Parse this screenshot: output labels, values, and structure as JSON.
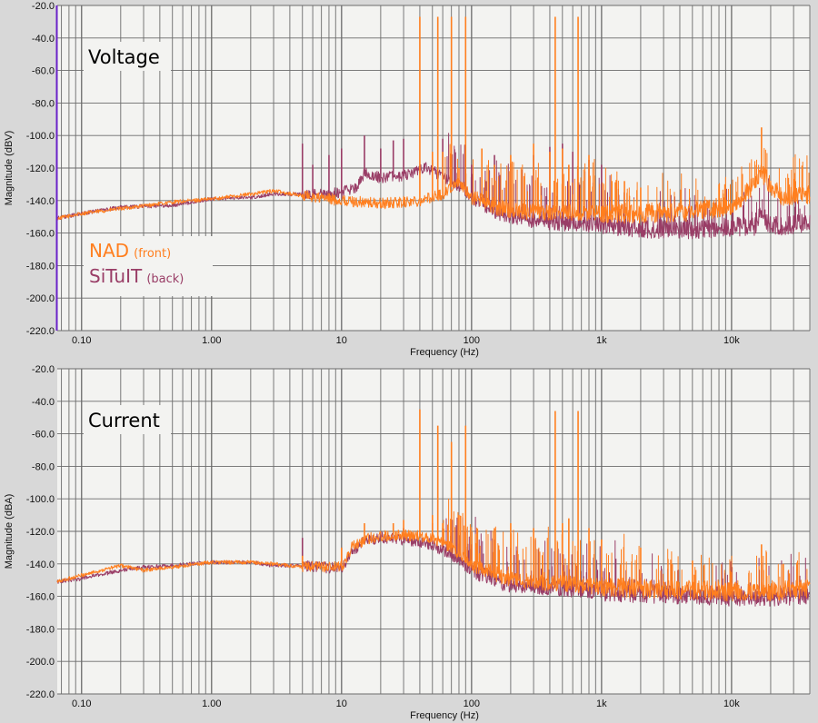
{
  "colors": {
    "nad": "#ff7f1f",
    "situit": "#993d66",
    "grid": "#6b6b6b",
    "plot_bg": "#f3f3f1",
    "accent_edge": "#6a22c8"
  },
  "legend": [
    {
      "name": "NAD",
      "note": "(front)"
    },
    {
      "name": "SiTuIT",
      "note": "(back)"
    }
  ],
  "chart_data": [
    {
      "type": "line",
      "title": "Voltage",
      "xlabel": "Frequency (Hz)",
      "ylabel": "Magnitude (dBV)",
      "xscale": "log",
      "xlim": [
        0.065,
        40000
      ],
      "ylim": [
        -220,
        -20
      ],
      "grid": true,
      "legend_placement": "bottom-left",
      "xticks": [
        {
          "v": 0.1,
          "label": "0.10"
        },
        {
          "v": 1,
          "label": "1.00"
        },
        {
          "v": 10,
          "label": "10"
        },
        {
          "v": 100,
          "label": "100"
        },
        {
          "v": 1000,
          "label": "1k"
        },
        {
          "v": 10000,
          "label": "10k"
        }
      ],
      "yticks": [
        {
          "v": -20,
          "label": "-20.0"
        },
        {
          "v": -40,
          "label": "-40.0"
        },
        {
          "v": -60,
          "label": "-60.0"
        },
        {
          "v": -80,
          "label": "-80.0"
        },
        {
          "v": -100,
          "label": "-100.0"
        },
        {
          "v": -120,
          "label": "-120.0"
        },
        {
          "v": -140,
          "label": "-140.0"
        },
        {
          "v": -160,
          "label": "-160.0"
        },
        {
          "v": -180,
          "label": "-180.0"
        },
        {
          "v": -200,
          "label": "-200.0"
        },
        {
          "v": -220,
          "label": "-220.0"
        }
      ],
      "series": [
        {
          "name": "NAD (front)",
          "floor": [
            [
              0.065,
              -151
            ],
            [
              0.1,
              -148
            ],
            [
              0.2,
              -145
            ],
            [
              0.5,
              -141
            ],
            [
              1,
              -139
            ],
            [
              2,
              -136
            ],
            [
              3,
              -134
            ],
            [
              5,
              -137
            ],
            [
              10,
              -140
            ],
            [
              20,
              -142
            ],
            [
              40,
              -140
            ],
            [
              60,
              -136
            ],
            [
              80,
              -128
            ],
            [
              100,
              -138
            ],
            [
              150,
              -144
            ],
            [
              200,
              -146
            ],
            [
              300,
              -147
            ],
            [
              500,
              -147
            ],
            [
              1000,
              -148
            ],
            [
              3000,
              -148
            ],
            [
              6000,
              -146
            ],
            [
              10000,
              -143
            ],
            [
              14000,
              -133
            ],
            [
              17000,
              -122
            ],
            [
              20000,
              -132
            ],
            [
              25000,
              -138
            ],
            [
              40000,
              -136
            ]
          ],
          "peaks": [
            [
              40,
              -27
            ],
            [
              50,
              -110
            ],
            [
              55,
              -27
            ],
            [
              60,
              -110
            ],
            [
              70,
              -27
            ],
            [
              80,
              -120
            ],
            [
              90,
              -27
            ],
            [
              120,
              -108
            ],
            [
              150,
              -118
            ],
            [
              200,
              -112
            ],
            [
              300,
              -105
            ],
            [
              400,
              -110
            ],
            [
              440,
              -27
            ],
            [
              500,
              -108
            ],
            [
              560,
              -118
            ],
            [
              660,
              -27
            ],
            [
              800,
              -112
            ],
            [
              1200,
              -128
            ],
            [
              1500,
              -128
            ],
            [
              2000,
              -132
            ],
            [
              8000,
              -130
            ],
            [
              17000,
              -95
            ]
          ]
        },
        {
          "name": "SiTuIT (back)",
          "floor": [
            [
              0.065,
              -151
            ],
            [
              0.1,
              -148
            ],
            [
              0.2,
              -144
            ],
            [
              0.5,
              -143
            ],
            [
              1,
              -139
            ],
            [
              2,
              -138
            ],
            [
              3,
              -136
            ],
            [
              5,
              -136
            ],
            [
              7,
              -136
            ],
            [
              10,
              -135
            ],
            [
              13,
              -132
            ],
            [
              15,
              -123
            ],
            [
              20,
              -126
            ],
            [
              30,
              -125
            ],
            [
              45,
              -120
            ],
            [
              60,
              -125
            ],
            [
              80,
              -132
            ],
            [
              100,
              -137
            ],
            [
              150,
              -146
            ],
            [
              200,
              -150
            ],
            [
              300,
              -152
            ],
            [
              500,
              -154
            ],
            [
              1000,
              -155
            ],
            [
              2000,
              -157
            ],
            [
              5000,
              -158
            ],
            [
              10000,
              -156
            ],
            [
              15000,
              -156
            ],
            [
              17000,
              -148
            ],
            [
              20000,
              -156
            ],
            [
              40000,
              -154
            ]
          ],
          "peaks": [
            [
              5,
              -105
            ],
            [
              6,
              -118
            ],
            [
              8,
              -112
            ],
            [
              10,
              -108
            ],
            [
              15,
              -100
            ],
            [
              20,
              -108
            ],
            [
              25,
              -103
            ],
            [
              30,
              -102
            ],
            [
              40,
              -120
            ],
            [
              50,
              -115
            ],
            [
              60,
              -102
            ],
            [
              100,
              -118
            ],
            [
              150,
              -112
            ],
            [
              200,
              -117
            ],
            [
              300,
              -112
            ],
            [
              400,
              -107
            ],
            [
              500,
              -105
            ],
            [
              600,
              -110
            ],
            [
              800,
              -115
            ],
            [
              1000,
              -118
            ]
          ]
        }
      ]
    },
    {
      "type": "line",
      "title": "Current",
      "xlabel": "Frequency (Hz)",
      "ylabel": "Magnitude (dBA)",
      "xscale": "log",
      "xlim": [
        0.065,
        40000
      ],
      "ylim": [
        -220,
        -20
      ],
      "grid": true,
      "xticks": [
        {
          "v": 0.1,
          "label": "0.10"
        },
        {
          "v": 1,
          "label": "1.00"
        },
        {
          "v": 10,
          "label": "10"
        },
        {
          "v": 100,
          "label": "100"
        },
        {
          "v": 1000,
          "label": "1k"
        },
        {
          "v": 10000,
          "label": "10k"
        }
      ],
      "yticks": [
        {
          "v": -20,
          "label": "-20.0"
        },
        {
          "v": -40,
          "label": "-40.0"
        },
        {
          "v": -60,
          "label": "-60.0"
        },
        {
          "v": -80,
          "label": "-80.0"
        },
        {
          "v": -100,
          "label": "-100.0"
        },
        {
          "v": -120,
          "label": "-120.0"
        },
        {
          "v": -140,
          "label": "-140.0"
        },
        {
          "v": -160,
          "label": "-160.0"
        },
        {
          "v": -180,
          "label": "-180.0"
        },
        {
          "v": -200,
          "label": "-200.0"
        },
        {
          "v": -220,
          "label": "-220.0"
        }
      ],
      "series": [
        {
          "name": "NAD (front)",
          "floor": [
            [
              0.065,
              -151
            ],
            [
              0.1,
              -147
            ],
            [
              0.2,
              -141
            ],
            [
              0.3,
              -144
            ],
            [
              0.5,
              -142
            ],
            [
              1,
              -139
            ],
            [
              2,
              -139
            ],
            [
              3,
              -140
            ],
            [
              5,
              -142
            ],
            [
              10,
              -142
            ],
            [
              12,
              -130
            ],
            [
              15,
              -125
            ],
            [
              20,
              -123
            ],
            [
              30,
              -122
            ],
            [
              50,
              -124
            ],
            [
              70,
              -130
            ],
            [
              100,
              -140
            ],
            [
              150,
              -146
            ],
            [
              200,
              -150
            ],
            [
              500,
              -152
            ],
            [
              1000,
              -154
            ],
            [
              2000,
              -155
            ],
            [
              5000,
              -156
            ],
            [
              10000,
              -157
            ],
            [
              20000,
              -157
            ],
            [
              40000,
              -155
            ]
          ],
          "peaks": [
            [
              5,
              -135
            ],
            [
              10,
              -130
            ],
            [
              15,
              -115
            ],
            [
              25,
              -115
            ],
            [
              30,
              -113
            ],
            [
              40,
              -45
            ],
            [
              50,
              -110
            ],
            [
              55,
              -55
            ],
            [
              60,
              -115
            ],
            [
              70,
              -65
            ],
            [
              80,
              -110
            ],
            [
              90,
              -55
            ],
            [
              150,
              -118
            ],
            [
              200,
              -115
            ],
            [
              300,
              -118
            ],
            [
              440,
              -46
            ],
            [
              500,
              -115
            ],
            [
              560,
              -112
            ],
            [
              660,
              -46
            ],
            [
              800,
              -118
            ],
            [
              1000,
              -125
            ],
            [
              2000,
              -130
            ],
            [
              5000,
              -138
            ],
            [
              10000,
              -145
            ],
            [
              17000,
              -128
            ],
            [
              25000,
              -140
            ]
          ]
        },
        {
          "name": "SiTuIT (back)",
          "floor": [
            [
              0.065,
              -151
            ],
            [
              0.1,
              -149
            ],
            [
              0.2,
              -144
            ],
            [
              0.3,
              -142
            ],
            [
              0.5,
              -141
            ],
            [
              1,
              -139
            ],
            [
              2,
              -139
            ],
            [
              3,
              -141
            ],
            [
              5,
              -141
            ],
            [
              10,
              -143
            ],
            [
              12,
              -133
            ],
            [
              15,
              -126
            ],
            [
              20,
              -124
            ],
            [
              30,
              -125
            ],
            [
              50,
              -128
            ],
            [
              70,
              -135
            ],
            [
              100,
              -144
            ],
            [
              150,
              -150
            ],
            [
              200,
              -153
            ],
            [
              500,
              -155
            ],
            [
              1000,
              -157
            ],
            [
              2000,
              -158
            ],
            [
              5000,
              -159
            ],
            [
              10000,
              -160
            ],
            [
              20000,
              -160
            ],
            [
              40000,
              -159
            ]
          ],
          "peaks": [
            [
              5,
              -124
            ],
            [
              10,
              -130
            ],
            [
              20,
              -120
            ],
            [
              30,
              -118
            ],
            [
              50,
              -115
            ],
            [
              60,
              -118
            ],
            [
              100,
              -128
            ],
            [
              150,
              -125
            ],
            [
              200,
              -130
            ]
          ]
        }
      ]
    }
  ]
}
